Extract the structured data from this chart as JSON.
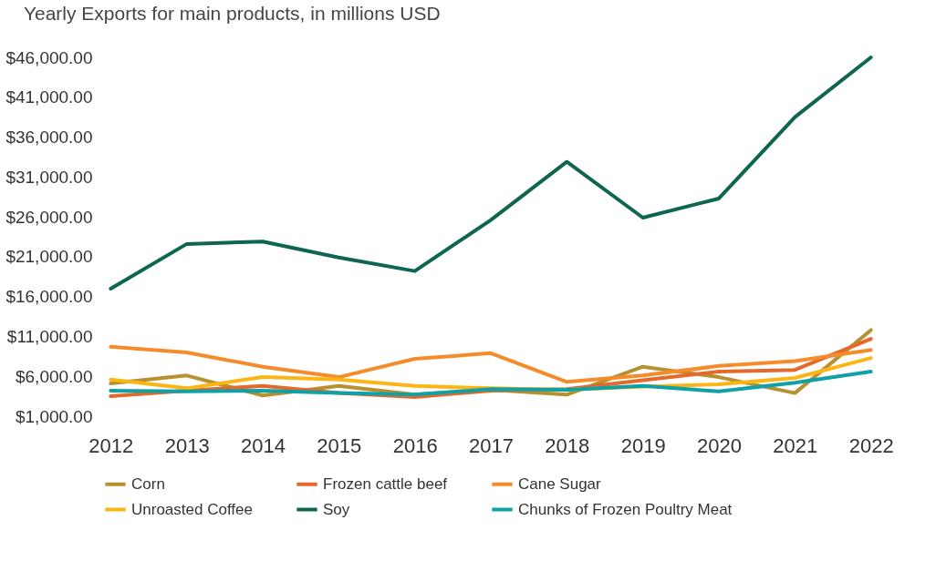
{
  "chart_data": {
    "type": "line",
    "title": "Yearly Exports for main products, in millions USD",
    "categories": [
      "2012",
      "2013",
      "2014",
      "2015",
      "2016",
      "2017",
      "2018",
      "2019",
      "2020",
      "2021",
      "2022"
    ],
    "series": [
      {
        "name": "Corn",
        "color": "#b8902f",
        "values": [
          5100,
          6100,
          3600,
          4800,
          3700,
          4300,
          3700,
          7200,
          5900,
          3900,
          11800
        ]
      },
      {
        "name": "Frozen cattle beef",
        "color": "#e5692a",
        "values": [
          3500,
          4200,
          4800,
          3900,
          3400,
          4200,
          4400,
          5500,
          6600,
          6800,
          10700
        ]
      },
      {
        "name": "Cane Sugar",
        "color": "#f58b2b",
        "values": [
          9700,
          9000,
          7200,
          5900,
          8200,
          8900,
          5300,
          6100,
          7300,
          7900,
          9300
        ]
      },
      {
        "name": "Unroasted Coffee",
        "color": "#fbb615",
        "values": [
          5600,
          4500,
          5900,
          5600,
          4800,
          4500,
          4300,
          4700,
          5000,
          5800,
          8300
        ]
      },
      {
        "name": "Soy",
        "color": "#0e6650",
        "values": [
          17000,
          22600,
          22900,
          20900,
          19200,
          25600,
          32900,
          25900,
          28300,
          38500,
          46000
        ]
      },
      {
        "name": "Chunks of Frozen Poultry Meat",
        "color": "#0fa0a8",
        "values": [
          4200,
          4100,
          4200,
          3900,
          3700,
          4400,
          4300,
          4800,
          4100,
          5200,
          6600
        ]
      }
    ],
    "ylim": [
      1000,
      46000
    ],
    "yticks": [
      {
        "value": 1000,
        "label": "$1,000.00"
      },
      {
        "value": 6000,
        "label": "$6,000.00"
      },
      {
        "value": 11000,
        "label": "$11,000.00"
      },
      {
        "value": 16000,
        "label": "$16,000.00"
      },
      {
        "value": 21000,
        "label": "$21,000.00"
      },
      {
        "value": 26000,
        "label": "$26,000.00"
      },
      {
        "value": 31000,
        "label": "$31,000.00"
      },
      {
        "value": 36000,
        "label": "$36,000.00"
      },
      {
        "value": 41000,
        "label": "$41,000.00"
      },
      {
        "value": 46000,
        "label": "$46,000.00"
      }
    ],
    "grid": false,
    "legend": "bottom",
    "marker": "none",
    "line_style": "solid"
  }
}
